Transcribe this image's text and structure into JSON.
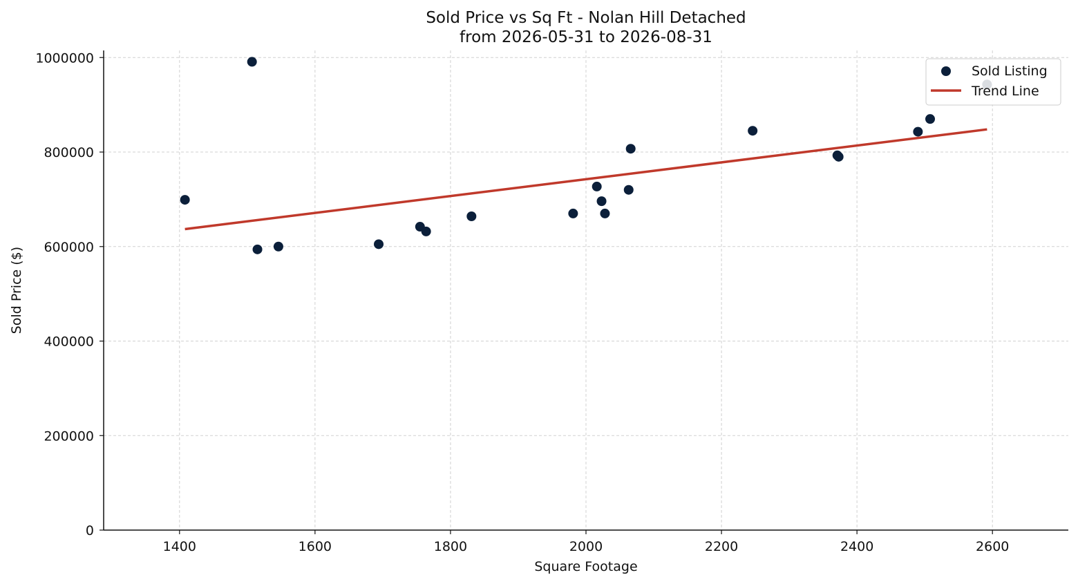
{
  "chart_data": {
    "type": "scatter",
    "title": "Sold Price vs Sq Ft - Nolan Hill Detached",
    "subtitle": "from 2026-05-31 to 2026-08-31",
    "xlabel": "Square Footage",
    "ylabel": "Sold Price ($)",
    "xlim": [
      1288,
      2712
    ],
    "ylim": [
      0,
      1015000
    ],
    "xticks": [
      1400,
      1600,
      1800,
      2000,
      2200,
      2400,
      2600
    ],
    "yticks": [
      0,
      200000,
      400000,
      600000,
      800000,
      1000000
    ],
    "grid": true,
    "legend_position": "top-right",
    "series": [
      {
        "name": "Sold Listing",
        "kind": "scatter",
        "color": "#0b1f3a",
        "points": [
          [
            1408,
            699000
          ],
          [
            1507,
            991000
          ],
          [
            1515,
            594000
          ],
          [
            1546,
            600000
          ],
          [
            1694,
            605000
          ],
          [
            1755,
            642000
          ],
          [
            1764,
            632000
          ],
          [
            1831,
            664000
          ],
          [
            1981,
            670000
          ],
          [
            2016,
            727000
          ],
          [
            2023,
            696000
          ],
          [
            2028,
            670000
          ],
          [
            2063,
            720000
          ],
          [
            2066,
            807000
          ],
          [
            2246,
            845000
          ],
          [
            2371,
            793000
          ],
          [
            2373,
            790000
          ],
          [
            2490,
            843000
          ],
          [
            2508,
            870000
          ],
          [
            2592,
            943000
          ]
        ]
      },
      {
        "name": "Trend Line",
        "kind": "line",
        "color": "#c0392b",
        "points": [
          [
            1408,
            637000
          ],
          [
            2592,
            848000
          ]
        ]
      }
    ]
  }
}
